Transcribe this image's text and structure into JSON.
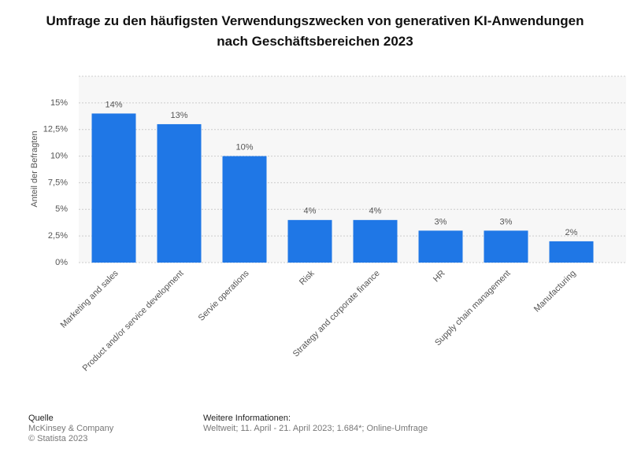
{
  "chart_data": {
    "type": "bar",
    "title": "Umfrage zu den häufigsten Verwendungszwecken von generativen KI-Anwendungen nach Geschäftsbereichen 2023",
    "y_label": "Anteil der Befragten",
    "categories": [
      "Marketing and sales",
      "Product and/or service development",
      "Servie operations",
      "Risk",
      "Strategy and corporate finance",
      "HR",
      "Supply chain management",
      "Manufacturing"
    ],
    "values": [
      14,
      13,
      10,
      4,
      4,
      3,
      3,
      2
    ],
    "value_labels": [
      "14%",
      "13%",
      "10%",
      "4%",
      "4%",
      "3%",
      "3%",
      "2%"
    ],
    "color": "#1f77e6",
    "ylim": [
      0,
      17.5
    ],
    "yticks": [
      {
        "value": 0,
        "label": "0%"
      },
      {
        "value": 2.5,
        "label": "2,5%"
      },
      {
        "value": 5,
        "label": "5%"
      },
      {
        "value": 7.5,
        "label": "7,5%"
      },
      {
        "value": 10,
        "label": "10%"
      },
      {
        "value": 12.5,
        "label": "12,5%"
      },
      {
        "value": 15,
        "label": "15%"
      }
    ],
    "grid": true
  },
  "footer": {
    "source_heading": "Quelle",
    "source": "McKinsey & Company",
    "copyright": "© Statista 2023",
    "info_heading": "Weitere Informationen:",
    "info": "Weltweit; 11. April - 21. April 2023; 1.684*; Online-Umfrage"
  }
}
